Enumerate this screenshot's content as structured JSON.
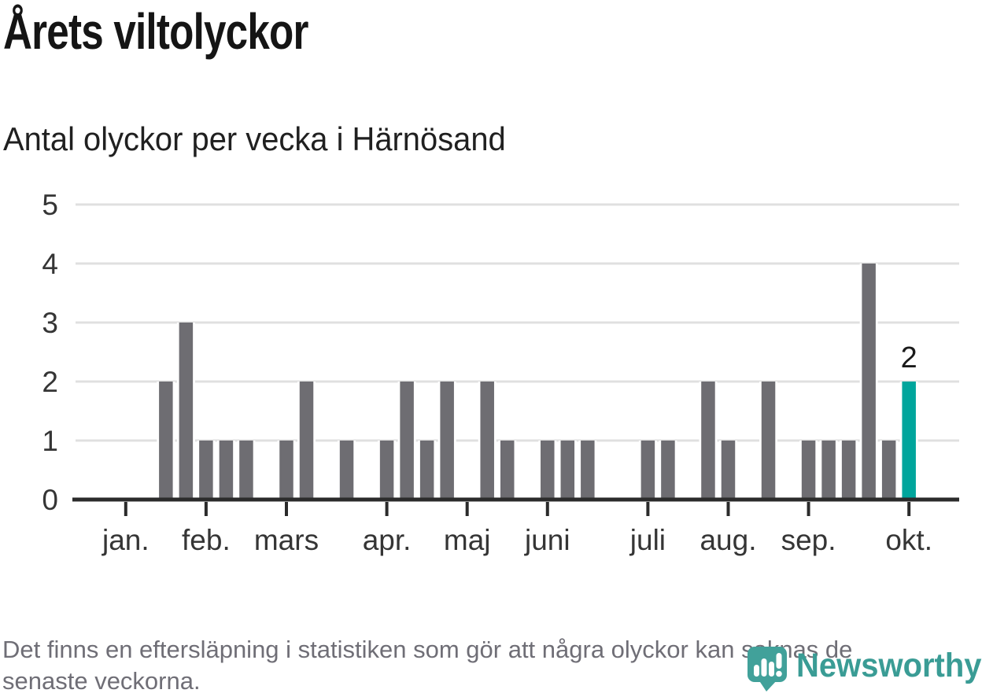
{
  "header": {
    "title": "Årets viltolyckor",
    "subtitle": "Antal olyckor per vecka i Härnösand"
  },
  "chart_data": {
    "type": "bar",
    "title": "Årets viltolyckor",
    "subtitle": "Antal olyckor per vecka i Härnösand",
    "x_unit": "vecka",
    "weeks": [
      1,
      2,
      3,
      4,
      5,
      6,
      7,
      8,
      9,
      10,
      11,
      12,
      13,
      14,
      15,
      16,
      17,
      18,
      19,
      20,
      21,
      22,
      23,
      24,
      25,
      26,
      27,
      28,
      29,
      30,
      31,
      32,
      33,
      34,
      35,
      36,
      37,
      38,
      39,
      40,
      41,
      42
    ],
    "values": [
      0,
      0,
      0,
      0,
      2,
      3,
      1,
      1,
      1,
      0,
      1,
      2,
      0,
      1,
      0,
      1,
      2,
      1,
      2,
      0,
      2,
      1,
      0,
      1,
      1,
      1,
      0,
      0,
      1,
      1,
      0,
      2,
      1,
      0,
      2,
      0,
      1,
      1,
      1,
      4,
      1,
      2
    ],
    "highlight_week": 42,
    "highlight_value": 2,
    "highlight_label": "2",
    "yticks": [
      0,
      1,
      2,
      3,
      4,
      5
    ],
    "ylim": [
      0,
      5
    ],
    "grid": true,
    "months": [
      {
        "label": "jan.",
        "week": 3
      },
      {
        "label": "feb.",
        "week": 7
      },
      {
        "label": "mars",
        "week": 11
      },
      {
        "label": "apr.",
        "week": 16
      },
      {
        "label": "maj",
        "week": 20
      },
      {
        "label": "juni",
        "week": 24
      },
      {
        "label": "juli",
        "week": 29
      },
      {
        "label": "aug.",
        "week": 33
      },
      {
        "label": "sep.",
        "week": 37
      },
      {
        "label": "okt.",
        "week": 42
      }
    ],
    "bar_color": "#6e6d72",
    "highlight_color": "#00a59c",
    "grid_color": "#e0e0e0",
    "axis_color": "#2b2b2b",
    "label_color": "#353535"
  },
  "footer": {
    "lines": [
      "Det finns en eftersläpning i statistiken som gör att några olyckor kan saknas de",
      "senaste veckorna."
    ]
  },
  "logo": {
    "wordmark": "Newsworthy",
    "wordmark_color": "#3a9c95",
    "mark_color": "#41a19a",
    "mark_glyph_color": "#ffffff"
  }
}
